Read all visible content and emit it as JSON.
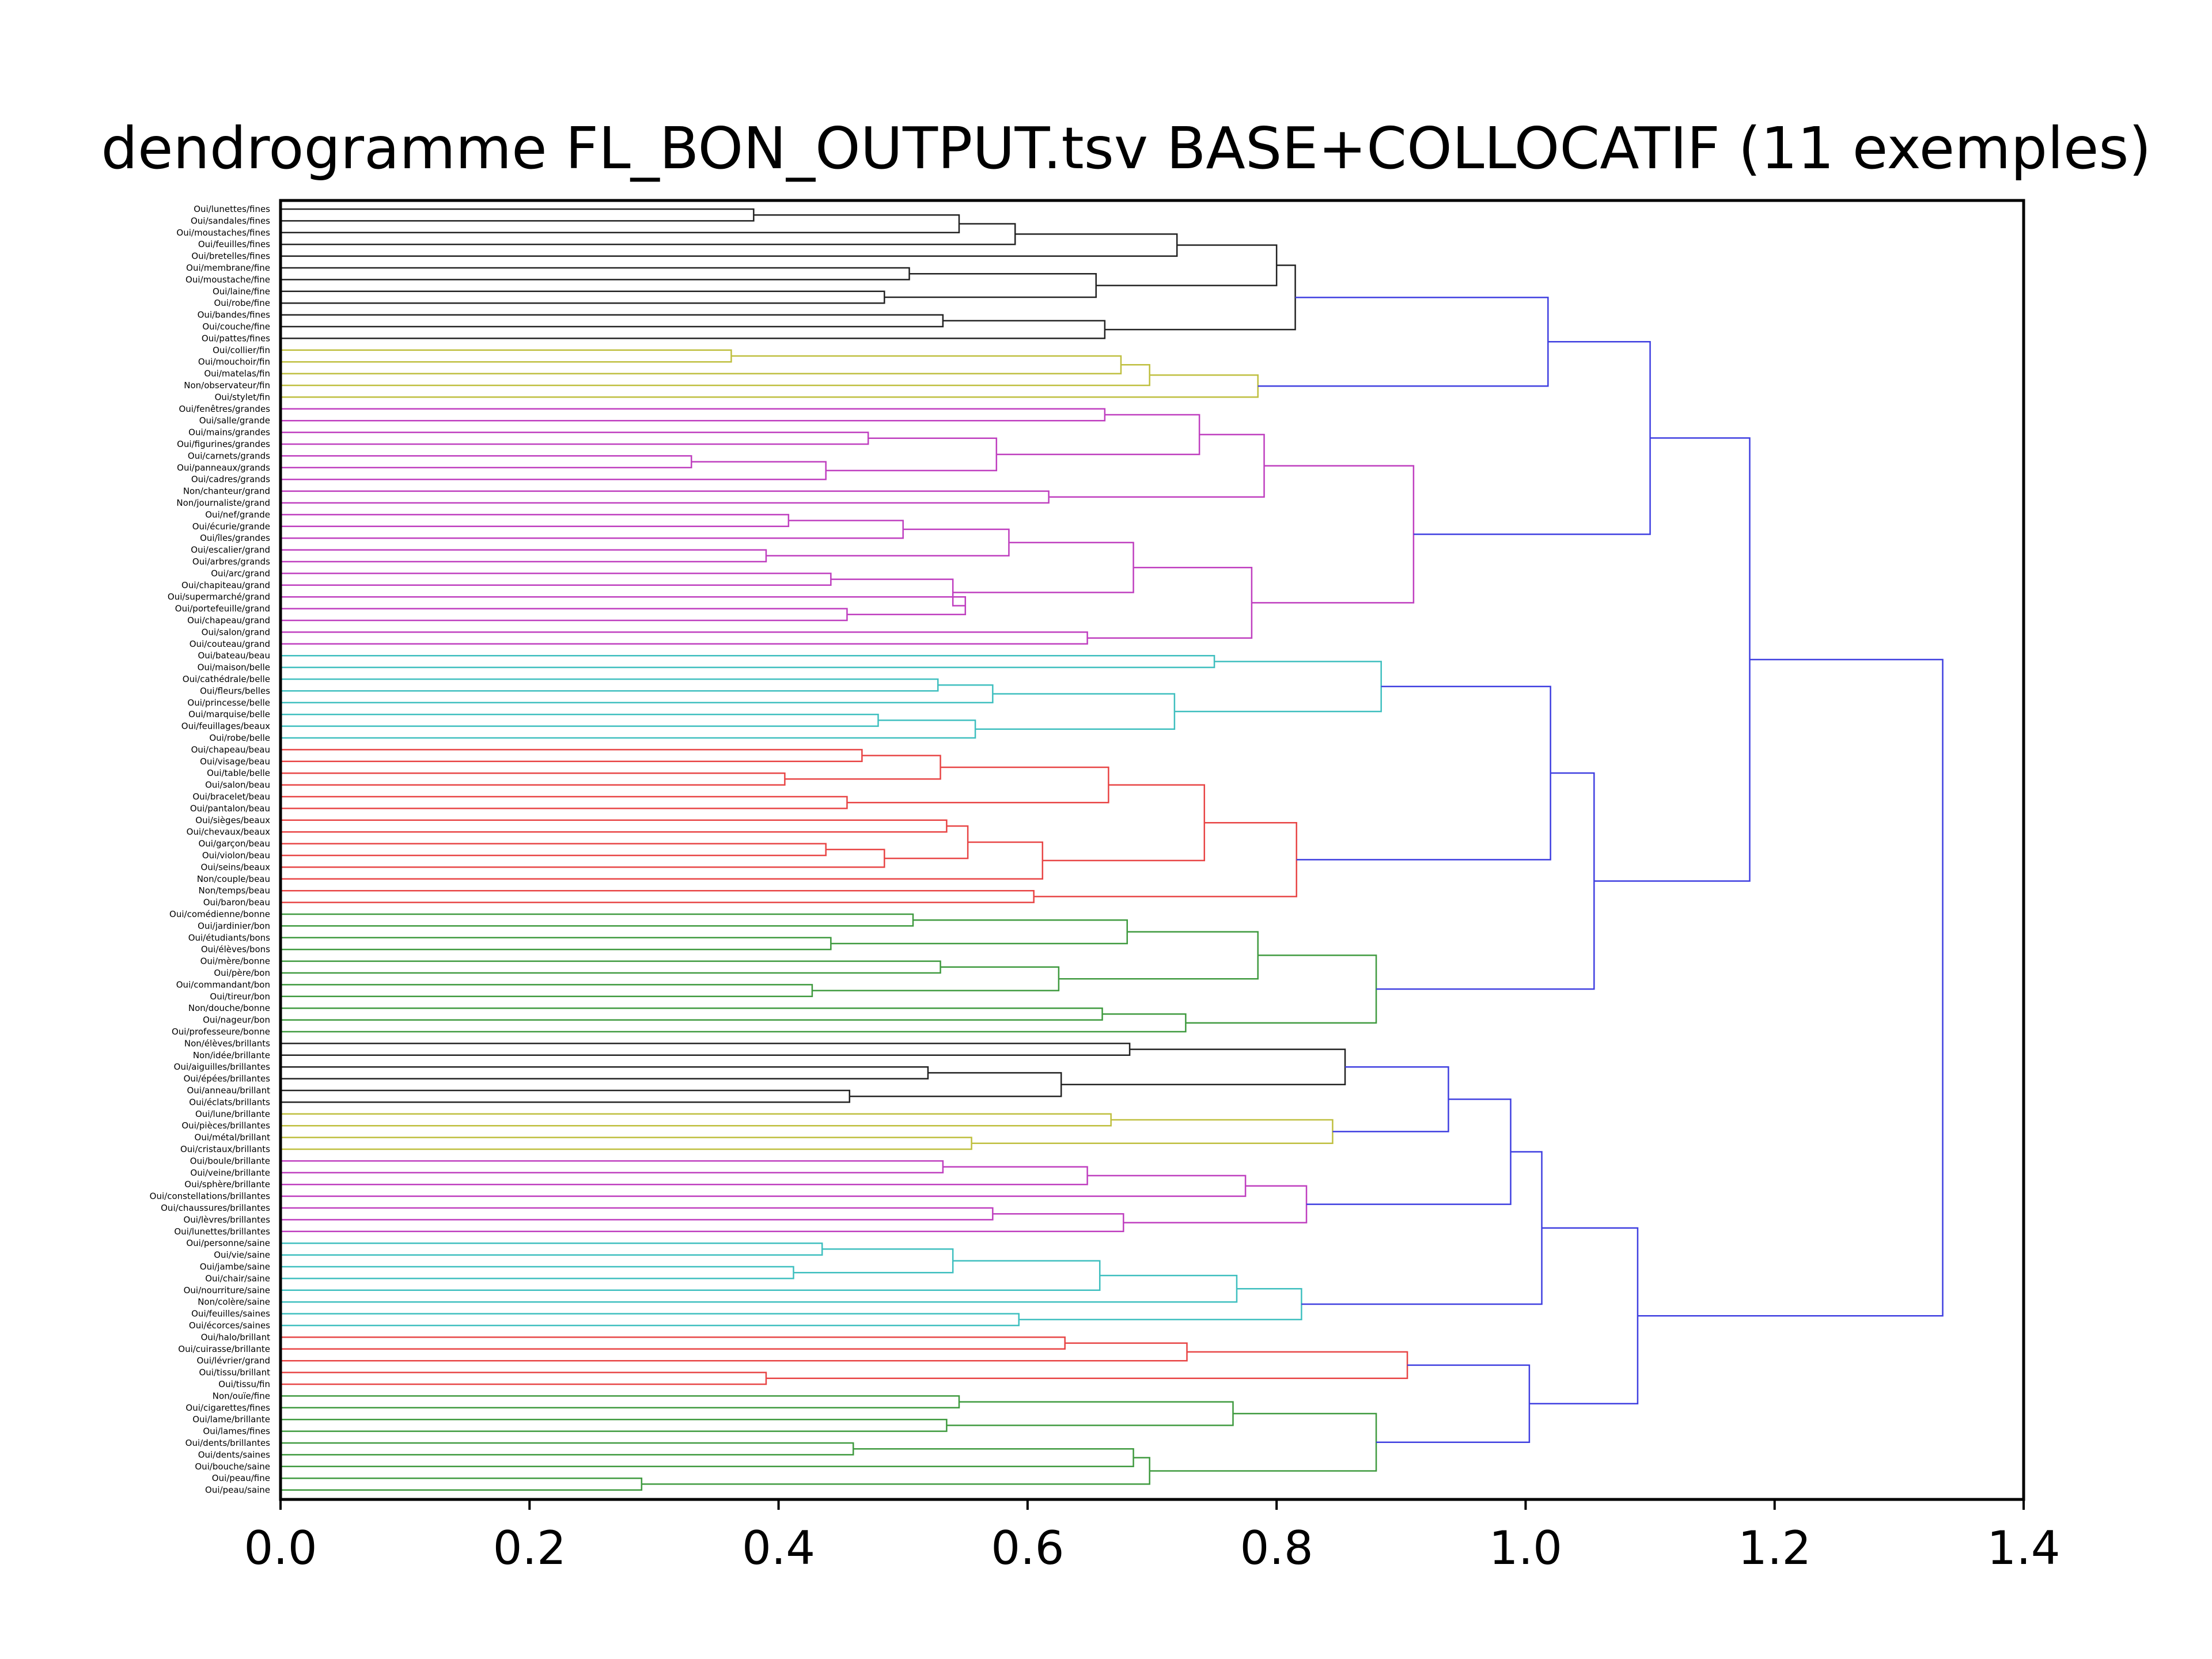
{
  "chart_data": {
    "type": "dendrogram",
    "title": "dendrogramme FL_BON_OUTPUT.tsv BASE+COLLOCATIF (11 exemples)",
    "orientation": "horizontal",
    "xlim": [
      0.0,
      1.4
    ],
    "xticks": [
      "0.0",
      "0.2",
      "0.4",
      "0.6",
      "0.8",
      "1.0",
      "1.2",
      "1.4"
    ],
    "grid": false,
    "leaves": [
      "Oui/lunettes/fines",
      "Oui/sandales/fines",
      "Oui/moustaches/fines",
      "Oui/feuilles/fines",
      "Oui/bretelles/fines",
      "Oui/membrane/fine",
      "Oui/moustache/fine",
      "Oui/laine/fine",
      "Oui/robe/fine",
      "Oui/bandes/fines",
      "Oui/couche/fine",
      "Oui/pattes/fines",
      "Oui/collier/fin",
      "Oui/mouchoir/fin",
      "Oui/matelas/fin",
      "Non/observateur/fin",
      "Oui/stylet/fin",
      "Oui/fenêtres/grandes",
      "Oui/salle/grande",
      "Oui/mains/grandes",
      "Oui/figurines/grandes",
      "Oui/carnets/grands",
      "Oui/panneaux/grands",
      "Oui/cadres/grands",
      "Non/chanteur/grand",
      "Non/journaliste/grand",
      "Oui/nef/grande",
      "Oui/écurie/grande",
      "Oui/îles/grandes",
      "Oui/escalier/grand",
      "Oui/arbres/grands",
      "Oui/arc/grand",
      "Oui/chapiteau/grand",
      "Oui/supermarché/grand",
      "Oui/portefeuille/grand",
      "Oui/chapeau/grand",
      "Oui/salon/grand",
      "Oui/couteau/grand",
      "Oui/bateau/beau",
      "Oui/maison/belle",
      "Oui/cathédrale/belle",
      "Oui/fleurs/belles",
      "Oui/princesse/belle",
      "Oui/marquise/belle",
      "Oui/feuillages/beaux",
      "Oui/robe/belle",
      "Oui/chapeau/beau",
      "Oui/visage/beau",
      "Oui/table/belle",
      "Oui/salon/beau",
      "Oui/bracelet/beau",
      "Oui/pantalon/beau",
      "Oui/sièges/beaux",
      "Oui/chevaux/beaux",
      "Oui/garçon/beau",
      "Oui/violon/beau",
      "Oui/seins/beaux",
      "Non/couple/beau",
      "Non/temps/beau",
      "Oui/baron/beau",
      "Oui/comédienne/bonne",
      "Oui/jardinier/bon",
      "Oui/étudiants/bons",
      "Oui/élèves/bons",
      "Oui/mère/bonne",
      "Oui/père/bon",
      "Oui/commandant/bon",
      "Oui/tireur/bon",
      "Non/douche/bonne",
      "Oui/nageur/bon",
      "Oui/professeure/bonne",
      "Non/élèves/brillants",
      "Non/idée/brillante",
      "Oui/aiguilles/brillantes",
      "Oui/épées/brillantes",
      "Oui/anneau/brillant",
      "Oui/éclats/brillants",
      "Oui/lune/brillante",
      "Oui/pièces/brillantes",
      "Oui/métal/brillant",
      "Oui/cristaux/brillants",
      "Oui/boule/brillante",
      "Oui/veine/brillante",
      "Oui/sphère/brillante",
      "Oui/constellations/brillantes",
      "Oui/chaussures/brillantes",
      "Oui/lèvres/brillantes",
      "Oui/lunettes/brillantes",
      "Oui/personne/saine",
      "Oui/vie/saine",
      "Oui/jambe/saine",
      "Oui/chair/saine",
      "Oui/nourriture/saine",
      "Non/colère/saine",
      "Oui/feuilles/saines",
      "Oui/écorces/saines",
      "Oui/halo/brillant",
      "Oui/cuirasse/brillante",
      "Oui/lévrier/grand",
      "Oui/tissu/brillant",
      "Oui/tissu/fin",
      "Non/ouïe/fine",
      "Oui/cigarettes/fines",
      "Oui/lame/brillante",
      "Oui/lames/fines",
      "Oui/dents/brillantes",
      "Oui/dents/saines",
      "Oui/bouche/saine",
      "Oui/peau/fine",
      "Oui/peau/saine"
    ],
    "colors": {
      "black": "#222222",
      "olive": "#bfbf3f",
      "magenta": "#bf3fbf",
      "cyan": "#3fbfbf",
      "red": "#e84545",
      "green": "#3f9a3f",
      "blue": "#3f3fe0"
    },
    "links": [
      {
        "a": 0,
        "b": 1,
        "h": 0.38,
        "c": "black"
      },
      {
        "a": "L0",
        "b": 2,
        "h": 0.545,
        "c": "black"
      },
      {
        "a": "L1",
        "b": 3,
        "h": 0.59,
        "c": "black"
      },
      {
        "a": "L2",
        "b": 4,
        "h": 0.72,
        "c": "black"
      },
      {
        "a": 5,
        "b": 6,
        "h": 0.505,
        "c": "black"
      },
      {
        "a": 7,
        "b": 8,
        "h": 0.485,
        "c": "black"
      },
      {
        "a": "L4",
        "b": "L5",
        "h": 0.655,
        "c": "black"
      },
      {
        "a": "L3",
        "b": "L6",
        "h": 0.8,
        "c": "black"
      },
      {
        "a": 9,
        "b": 10,
        "h": 0.532,
        "c": "black"
      },
      {
        "a": "L8",
        "b": 11,
        "h": 0.662,
        "c": "black"
      },
      {
        "a": "L7",
        "b": "L9",
        "h": 0.815,
        "c": "black"
      },
      {
        "a": 12,
        "b": 13,
        "h": 0.362,
        "c": "olive"
      },
      {
        "a": "L11",
        "b": 14,
        "h": 0.675,
        "c": "olive"
      },
      {
        "a": "L12",
        "b": 15,
        "h": 0.698,
        "c": "olive"
      },
      {
        "a": "L13",
        "b": 16,
        "h": 0.785,
        "c": "olive"
      },
      {
        "a": "L10",
        "b": "L14",
        "h": 1.018,
        "c": "blue"
      },
      {
        "a": 17,
        "b": 18,
        "h": 0.662,
        "c": "magenta"
      },
      {
        "a": 19,
        "b": 20,
        "h": 0.472,
        "c": "magenta"
      },
      {
        "a": 21,
        "b": 22,
        "h": 0.33,
        "c": "magenta"
      },
      {
        "a": "L18",
        "b": 23,
        "h": 0.438,
        "c": "magenta"
      },
      {
        "a": "L17",
        "b": "L19",
        "h": 0.575,
        "c": "magenta"
      },
      {
        "a": "L16",
        "b": "L20",
        "h": 0.738,
        "c": "magenta"
      },
      {
        "a": 24,
        "b": 25,
        "h": 0.617,
        "c": "magenta"
      },
      {
        "a": "L21",
        "b": "L22",
        "h": 0.79,
        "c": "magenta"
      },
      {
        "a": 26,
        "b": 27,
        "h": 0.408,
        "c": "magenta"
      },
      {
        "a": "L24",
        "b": 28,
        "h": 0.5,
        "c": "magenta"
      },
      {
        "a": 29,
        "b": 30,
        "h": 0.39,
        "c": "magenta"
      },
      {
        "a": "L25",
        "b": "L26",
        "h": 0.585,
        "c": "magenta"
      },
      {
        "a": 31,
        "b": 32,
        "h": 0.442,
        "c": "magenta"
      },
      {
        "a": 34,
        "b": 35,
        "h": 0.455,
        "c": "magenta"
      },
      {
        "a": 33,
        "b": "L29",
        "h": 0.55,
        "c": "magenta"
      },
      {
        "a": "L28",
        "b": "L30",
        "h": 0.54,
        "c": "magenta"
      },
      {
        "a": "L27",
        "b": "L31",
        "h": 0.685,
        "c": "magenta"
      },
      {
        "a": 36,
        "b": 37,
        "h": 0.648,
        "c": "magenta"
      },
      {
        "a": "L32",
        "b": "L33",
        "h": 0.78,
        "c": "magenta"
      },
      {
        "a": "L23",
        "b": "L34",
        "h": 0.91,
        "c": "magenta"
      },
      {
        "a": "L15",
        "b": "L35",
        "h": 1.1,
        "c": "blue"
      },
      {
        "a": 38,
        "b": 39,
        "h": 0.75,
        "c": "cyan"
      },
      {
        "a": 40,
        "b": 41,
        "h": 0.528,
        "c": "cyan"
      },
      {
        "a": "L38",
        "b": 42,
        "h": 0.572,
        "c": "cyan"
      },
      {
        "a": 43,
        "b": 44,
        "h": 0.48,
        "c": "cyan"
      },
      {
        "a": "L40",
        "b": 45,
        "h": 0.558,
        "c": "cyan"
      },
      {
        "a": "L39",
        "b": "L41",
        "h": 0.718,
        "c": "cyan"
      },
      {
        "a": "L37",
        "b": "L42",
        "h": 0.884,
        "c": "cyan"
      },
      {
        "a": 46,
        "b": 47,
        "h": 0.467,
        "c": "red"
      },
      {
        "a": 48,
        "b": 49,
        "h": 0.405,
        "c": "red"
      },
      {
        "a": "L44",
        "b": "L45",
        "h": 0.53,
        "c": "red"
      },
      {
        "a": 50,
        "b": 51,
        "h": 0.455,
        "c": "red"
      },
      {
        "a": "L46",
        "b": "L47",
        "h": 0.665,
        "c": "red"
      },
      {
        "a": 52,
        "b": 53,
        "h": 0.535,
        "c": "red"
      },
      {
        "a": 54,
        "b": 55,
        "h": 0.438,
        "c": "red"
      },
      {
        "a": "L50",
        "b": 56,
        "h": 0.485,
        "c": "red"
      },
      {
        "a": "L49",
        "b": "L51",
        "h": 0.552,
        "c": "red"
      },
      {
        "a": "L52",
        "b": 57,
        "h": 0.612,
        "c": "red"
      },
      {
        "a": "L48",
        "b": "L53",
        "h": 0.742,
        "c": "red"
      },
      {
        "a": 58,
        "b": 59,
        "h": 0.605,
        "c": "red"
      },
      {
        "a": "L54",
        "b": "L55",
        "h": 0.816,
        "c": "red"
      },
      {
        "a": "L43",
        "b": "L56",
        "h": 1.02,
        "c": "blue"
      },
      {
        "a": 60,
        "b": 61,
        "h": 0.508,
        "c": "green"
      },
      {
        "a": 62,
        "b": 63,
        "h": 0.442,
        "c": "green"
      },
      {
        "a": "L58",
        "b": "L59",
        "h": 0.68,
        "c": "green"
      },
      {
        "a": 64,
        "b": 65,
        "h": 0.53,
        "c": "green"
      },
      {
        "a": 66,
        "b": 67,
        "h": 0.427,
        "c": "green"
      },
      {
        "a": "L61",
        "b": "L62",
        "h": 0.625,
        "c": "green"
      },
      {
        "a": "L60",
        "b": "L63",
        "h": 0.785,
        "c": "green"
      },
      {
        "a": 68,
        "b": 69,
        "h": 0.66,
        "c": "green"
      },
      {
        "a": "L65",
        "b": 70,
        "h": 0.727,
        "c": "green"
      },
      {
        "a": "L64",
        "b": "L66",
        "h": 0.88,
        "c": "green"
      },
      {
        "a": "L57",
        "b": "L67",
        "h": 1.055,
        "c": "blue"
      },
      {
        "a": "L68",
        "b": "L36",
        "h": 1.18,
        "c": "blue"
      },
      {
        "a": 71,
        "b": 72,
        "h": 0.682,
        "c": "black"
      },
      {
        "a": 73,
        "b": 74,
        "h": 0.52,
        "c": "black"
      },
      {
        "a": 75,
        "b": 76,
        "h": 0.457,
        "c": "black"
      },
      {
        "a": "L71",
        "b": "L72",
        "h": 0.627,
        "c": "black"
      },
      {
        "a": "L70",
        "b": "L73",
        "h": 0.855,
        "c": "black"
      },
      {
        "a": 77,
        "b": 78,
        "h": 0.667,
        "c": "olive"
      },
      {
        "a": 79,
        "b": 80,
        "h": 0.555,
        "c": "olive"
      },
      {
        "a": "L75",
        "b": "L76",
        "h": 0.845,
        "c": "olive"
      },
      {
        "a": "L74",
        "b": "L77",
        "h": 0.938,
        "c": "blue"
      },
      {
        "a": 81,
        "b": 82,
        "h": 0.532,
        "c": "magenta"
      },
      {
        "a": "L79",
        "b": 83,
        "h": 0.648,
        "c": "magenta"
      },
      {
        "a": "L80",
        "b": 84,
        "h": 0.775,
        "c": "magenta"
      },
      {
        "a": 85,
        "b": 86,
        "h": 0.572,
        "c": "magenta"
      },
      {
        "a": "L82",
        "b": 87,
        "h": 0.677,
        "c": "magenta"
      },
      {
        "a": "L81",
        "b": "L83",
        "h": 0.824,
        "c": "magenta"
      },
      {
        "a": "L78",
        "b": "L84",
        "h": 0.988,
        "c": "blue"
      },
      {
        "a": 88,
        "b": 89,
        "h": 0.435,
        "c": "cyan"
      },
      {
        "a": 90,
        "b": 91,
        "h": 0.412,
        "c": "cyan"
      },
      {
        "a": "L86",
        "b": "L87",
        "h": 0.54,
        "c": "cyan"
      },
      {
        "a": "L88",
        "b": 92,
        "h": 0.658,
        "c": "cyan"
      },
      {
        "a": "L89",
        "b": 93,
        "h": 0.768,
        "c": "cyan"
      },
      {
        "a": 94,
        "b": 95,
        "h": 0.593,
        "c": "cyan"
      },
      {
        "a": "L90",
        "b": "L91",
        "h": 0.82,
        "c": "cyan"
      },
      {
        "a": "L85",
        "b": "L92",
        "h": 1.013,
        "c": "blue"
      },
      {
        "a": 96,
        "b": 97,
        "h": 0.63,
        "c": "red"
      },
      {
        "a": "L94",
        "b": 98,
        "h": 0.728,
        "c": "red"
      },
      {
        "a": 99,
        "b": 100,
        "h": 0.39,
        "c": "red"
      },
      {
        "a": "L95",
        "b": "L96",
        "h": 0.905,
        "c": "red"
      },
      {
        "a": 101,
        "b": 102,
        "h": 0.545,
        "c": "green"
      },
      {
        "a": 103,
        "b": 104,
        "h": 0.535,
        "c": "green"
      },
      {
        "a": "L98",
        "b": "L99",
        "h": 0.765,
        "c": "green"
      },
      {
        "a": 105,
        "b": 106,
        "h": 0.46,
        "c": "green"
      },
      {
        "a": "L101",
        "b": 107,
        "h": 0.685,
        "c": "green"
      },
      {
        "a": 108,
        "b": 109,
        "h": 0.29,
        "c": "green"
      },
      {
        "a": "L102",
        "b": "L103",
        "h": 0.698,
        "c": "green"
      },
      {
        "a": "L100",
        "b": "L104",
        "h": 0.88,
        "c": "green"
      },
      {
        "a": "L97",
        "b": "L105",
        "h": 1.003,
        "c": "blue"
      },
      {
        "a": "L93",
        "b": "L106",
        "h": 1.09,
        "c": "blue"
      },
      {
        "a": "L69",
        "b": "L107",
        "h": 1.335,
        "c": "blue"
      }
    ]
  }
}
